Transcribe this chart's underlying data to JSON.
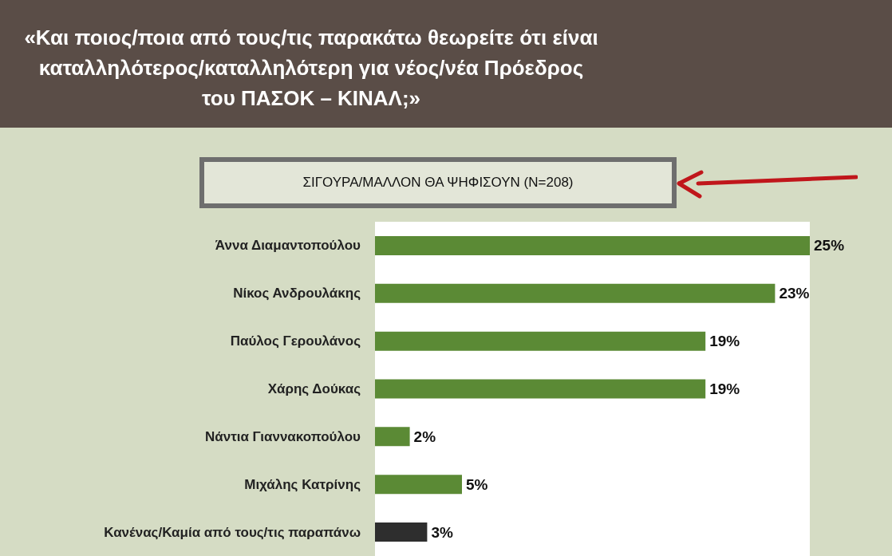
{
  "chart_data": {
    "type": "bar",
    "title": "«Και ποιος/ποια από τους/τις παρακάτω θεωρείτε ότι είναι καταλληλότερος/καταλληλότερη για νέος/νέα Πρόεδρος του ΠΑΣΟΚ – ΚΙΝΑΛ;»",
    "subtitle": "ΣΙΓΟΥΡΑ/ΜΑΛΛΟΝ ΘΑ ΨΗΦΙΣΟΥΝ (N=208)",
    "orientation": "horizontal",
    "categories": [
      "Άννα Διαμαντοπούλου",
      "Νίκος Ανδρουλάκης",
      "Παύλος Γερουλάνος",
      "Χάρης Δούκας",
      "Νάντια Γιαννακοπούλου",
      "Μιχάλης Κατρίνης",
      "Κανένας/Καμία από τους/τις παραπάνω"
    ],
    "values": [
      25,
      23,
      19,
      19,
      2,
      5,
      3
    ],
    "colors": [
      "#5b8a35",
      "#5b8a35",
      "#5b8a35",
      "#5b8a35",
      "#5b8a35",
      "#5b8a35",
      "#2e2e2e"
    ],
    "value_labels": [
      "25%",
      "23%",
      "19%",
      "19%",
      "2%",
      "5%",
      "3%"
    ]
  }
}
